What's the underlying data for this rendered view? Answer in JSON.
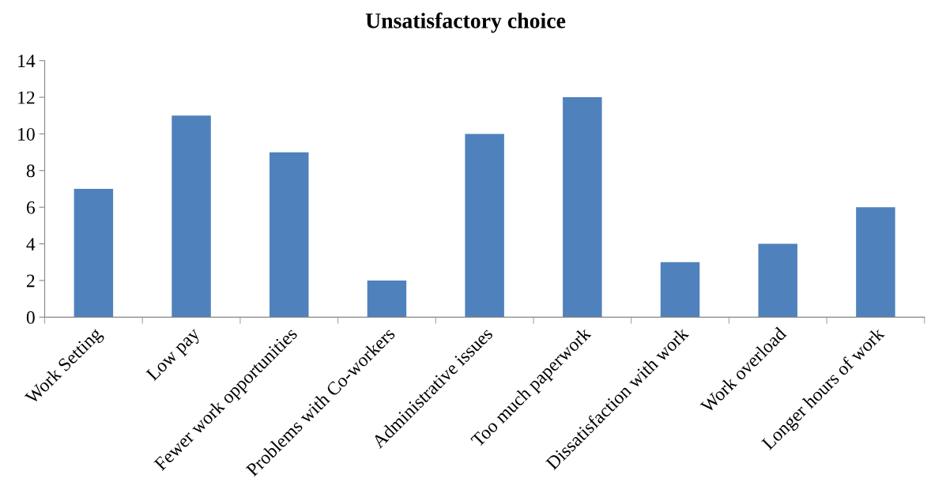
{
  "chart_data": {
    "type": "bar",
    "title": "Unsatisfactory choice",
    "categories": [
      "Work Setting",
      "Low pay",
      "Fewer work opportunities",
      "Problems with Co-workers",
      "Administrative issues",
      "Too much paperwork",
      "Dissatisfaction with work",
      "Work overload",
      "Longer hours of work"
    ],
    "values": [
      7,
      11,
      9,
      2,
      10,
      12,
      3,
      4,
      6
    ],
    "color": "#4f81bd",
    "ylim": [
      0,
      14
    ],
    "yticks": [
      0,
      2,
      4,
      6,
      8,
      10,
      12,
      14
    ],
    "grid": false,
    "legend": false
  }
}
